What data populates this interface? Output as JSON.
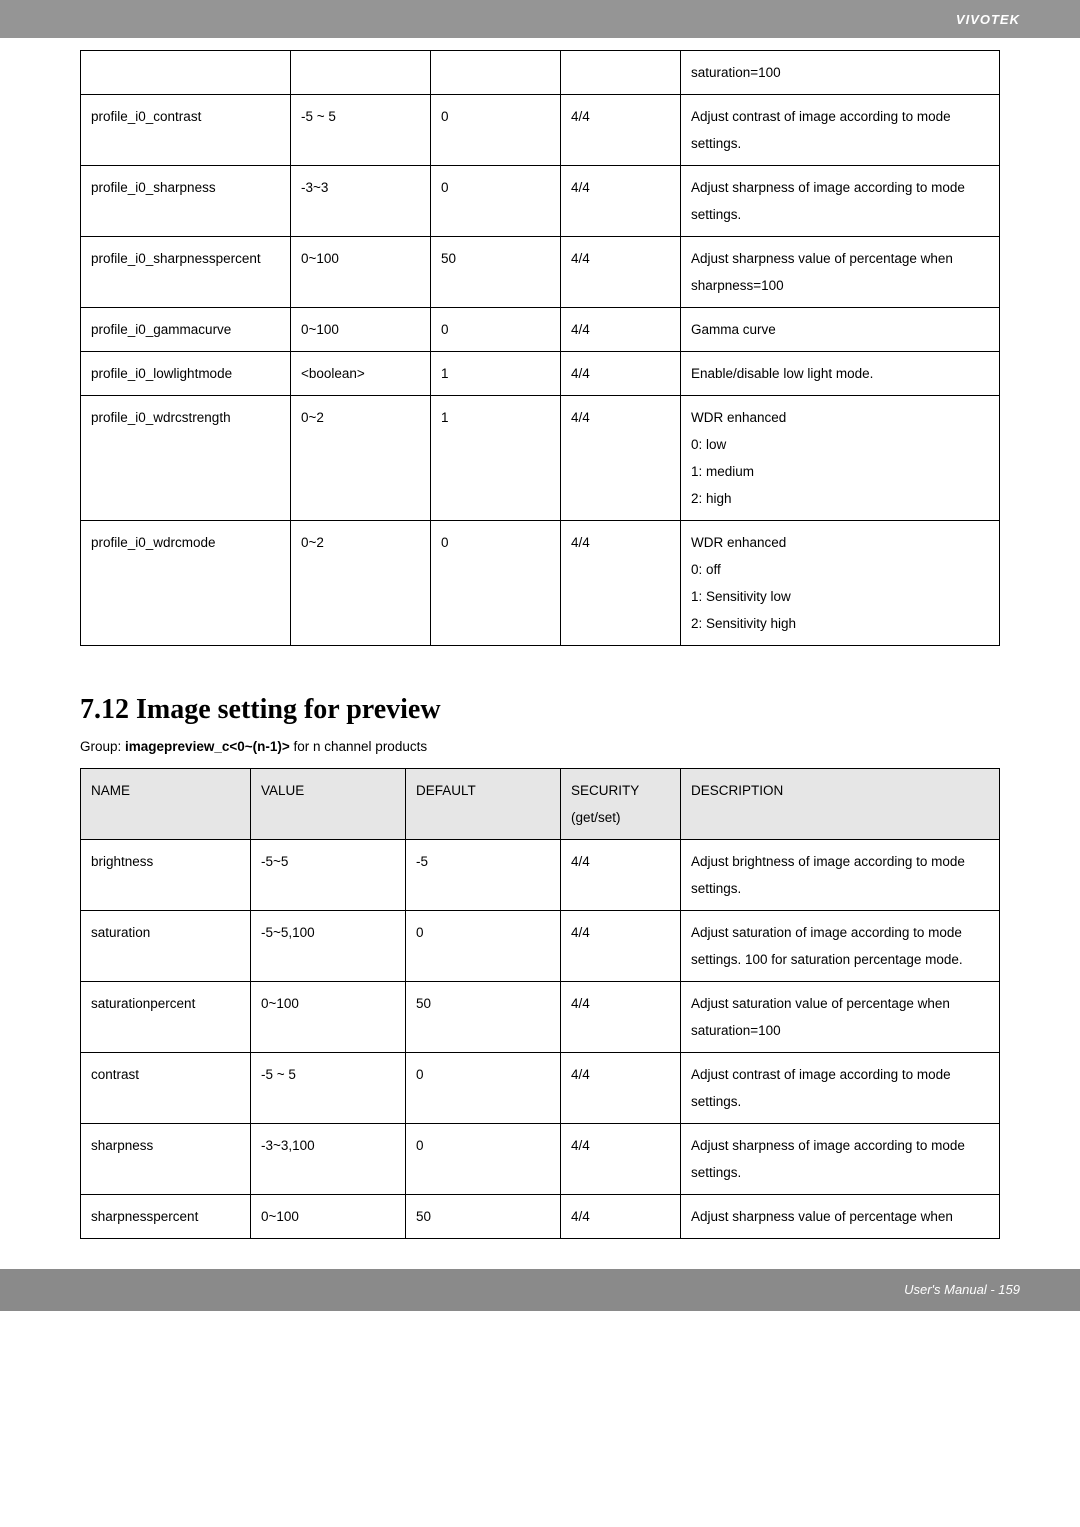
{
  "header": {
    "brand": "VIVOTEK"
  },
  "footer": {
    "text": "User's Manual - 159"
  },
  "table1": {
    "rows": [
      {
        "name": "",
        "value": "",
        "default": "",
        "security": "",
        "desc": "saturation=100"
      },
      {
        "name": "profile_i0_contrast",
        "value": "-5 ~ 5",
        "default": "0",
        "security": "4/4",
        "desc": "Adjust contrast of image according to mode settings."
      },
      {
        "name": "profile_i0_sharpness",
        "value": "-3~3",
        "default": "0",
        "security": "4/4",
        "desc": "Adjust sharpness of image according to mode settings."
      },
      {
        "name": "profile_i0_sharpnesspercent",
        "value": "0~100",
        "default": "50",
        "security": "4/4",
        "desc": "Adjust sharpness value of percentage when sharpness=100"
      },
      {
        "name": "profile_i0_gammacurve",
        "value": "0~100",
        "default": "0",
        "security": "4/4",
        "desc": "Gamma curve"
      },
      {
        "name": "profile_i0_lowlightmode",
        "value": "<boolean>",
        "default": "1",
        "security": "4/4",
        "desc": "Enable/disable low light mode."
      },
      {
        "name": "profile_i0_wdrcstrength",
        "value": "0~2",
        "default": "1",
        "security": "4/4",
        "desc": "WDR enhanced\n0: low\n1: medium\n2: high"
      },
      {
        "name": "profile_i0_wdrcmode",
        "value": "0~2",
        "default": "0",
        "security": "4/4",
        "desc": "WDR enhanced\n0: off\n1: Sensitivity low\n2: Sensitivity high"
      }
    ]
  },
  "section": {
    "title": "7.12 Image setting for preview",
    "group_prefix": "Group: ",
    "group_bold": "imagepreview_c<0~(n-1)>",
    "group_suffix": " for n channel products"
  },
  "table2": {
    "headers": {
      "name": "NAME",
      "value": "VALUE",
      "default": "DEFAULT",
      "security": "SECURITY (get/set)",
      "desc": "DESCRIPTION"
    },
    "rows": [
      {
        "name": "brightness",
        "value": "-5~5",
        "default": "-5",
        "security": "4/4",
        "desc": "Adjust brightness of image according to mode settings."
      },
      {
        "name": "saturation",
        "value": "-5~5,100",
        "default": "0",
        "security": "4/4",
        "desc": "Adjust saturation of image according to mode settings. 100 for saturation percentage mode."
      },
      {
        "name": "saturationpercent",
        "value": "0~100",
        "default": "50",
        "security": "4/4",
        "desc": "Adjust saturation value of percentage when saturation=100"
      },
      {
        "name": "contrast",
        "value": "-5 ~ 5",
        "default": "0",
        "security": "4/4",
        "desc": "Adjust contrast of image according to mode settings."
      },
      {
        "name": "sharpness",
        "value": "-3~3,100",
        "default": "0",
        "security": "4/4",
        "desc": "Adjust sharpness of image according to mode settings."
      },
      {
        "name": "sharpnesspercent",
        "value": "0~100",
        "default": "50",
        "security": "4/4",
        "desc": "Adjust sharpness value of percentage when"
      }
    ]
  }
}
